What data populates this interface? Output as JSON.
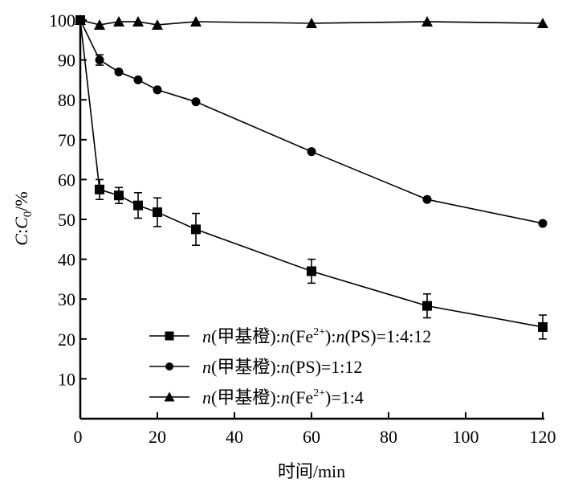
{
  "chart_data": {
    "type": "line",
    "title": "",
    "xlabel": "时间/min",
    "ylabel_parts": [
      "C",
      ":",
      "C",
      "0",
      "/%"
    ],
    "ylabel": "C:C0/%",
    "xlim": [
      0,
      120
    ],
    "ylim": [
      0,
      100
    ],
    "xticks": [
      0,
      20,
      40,
      60,
      80,
      100,
      120
    ],
    "yticks": [
      10,
      20,
      30,
      40,
      50,
      60,
      70,
      80,
      90,
      100
    ],
    "grid": false,
    "legend_position": "bottom-left",
    "x": [
      0,
      5,
      10,
      15,
      20,
      30,
      60,
      90,
      120
    ],
    "series": [
      {
        "name": "n(甲基橙):n(Fe2+):n(PS)=1:4:12",
        "marker": "square",
        "legend_parts": [
          "n",
          "(甲基橙):",
          "n",
          "(Fe",
          "2+",
          "):",
          "n",
          "(PS)=1:4:12"
        ],
        "values": [
          100,
          57.5,
          56,
          53.5,
          51.8,
          47.5,
          37,
          28.3,
          23
        ],
        "errors": [
          0,
          2.5,
          2,
          3.2,
          3.6,
          4,
          3,
          3,
          3
        ]
      },
      {
        "name": "n(甲基橙):n(PS)=1:12",
        "marker": "circle",
        "legend_parts": [
          "n",
          "(甲基橙):",
          "n",
          "(PS)=1:12"
        ],
        "values": [
          100,
          90,
          87,
          85,
          82.5,
          79.5,
          67,
          55,
          49
        ],
        "errors": [
          0,
          1.3,
          0.5,
          0.5,
          0.5,
          0.5,
          0.6,
          0.5,
          0.6
        ]
      },
      {
        "name": "n(甲基橙):n(Fe2+)=1:4",
        "marker": "triangle",
        "legend_parts": [
          "n",
          "(甲基橙):",
          "n",
          "(Fe",
          "2+",
          ")=1:4"
        ],
        "values": [
          100,
          98.8,
          99.6,
          99.6,
          98.8,
          99.6,
          99.2,
          99.6,
          99.2
        ],
        "errors": [
          0,
          0,
          0,
          0,
          0,
          0,
          0,
          0,
          0
        ]
      }
    ]
  }
}
